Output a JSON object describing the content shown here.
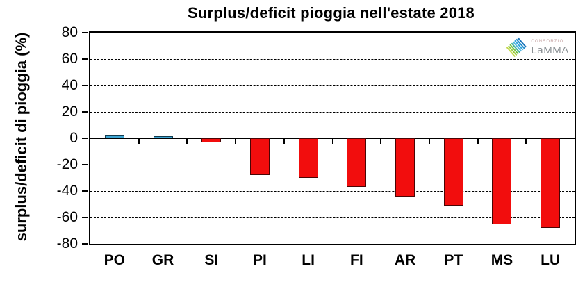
{
  "chart_data": {
    "type": "bar",
    "title": "Surplus/deficit pioggia nell'estate 2018",
    "ylabel": "surplus/deficit di pioggia (%)",
    "xlabel": "",
    "categories": [
      "PO",
      "GR",
      "SI",
      "PI",
      "LI",
      "FI",
      "AR",
      "PT",
      "MS",
      "LU"
    ],
    "values": [
      2,
      1,
      -3,
      -28,
      -30,
      -37,
      -44,
      -51,
      -65,
      -68
    ],
    "ylim": [
      -80,
      80
    ],
    "yticks": [
      80,
      60,
      40,
      20,
      0,
      -20,
      -40,
      -60,
      -80
    ],
    "grid": "horizontal dashed lines every 20 units, solid line at 0, solid frame",
    "legend": null,
    "colors": {
      "positive_fill": "#3fa6d4",
      "positive_border": "#123c50",
      "negative_fill": "#f20d0d",
      "negative_border": "#4a0505",
      "axis": "#000000",
      "background": "#ffffff"
    }
  },
  "logo": {
    "consorzio": "CONSORZIO",
    "name": "LaMMA",
    "stripe_colors": [
      "#c3d94e",
      "#9acb3c",
      "#70bf44",
      "#45b29a",
      "#52b7e0",
      "#2fa3dc",
      "#1f8ccb",
      "#1b75bb"
    ]
  }
}
